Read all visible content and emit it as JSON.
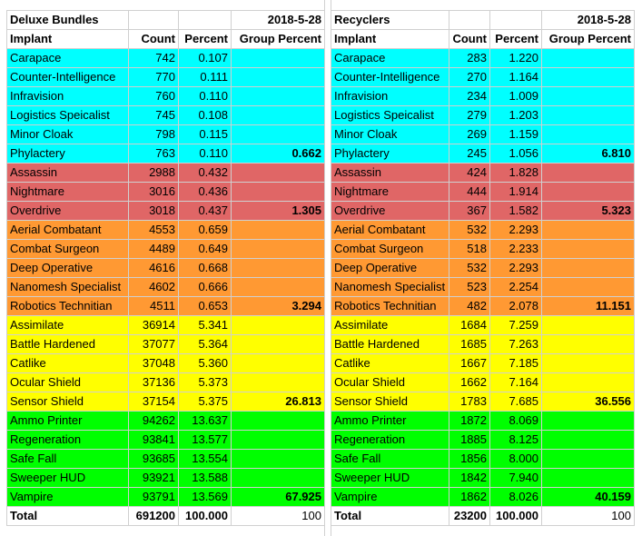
{
  "colors": {
    "cyan": "#00ffff",
    "red": "#e06666",
    "orange": "#ff9933",
    "yellow": "#ffff00",
    "green": "#00ff00",
    "white": "#ffffff"
  },
  "tables": [
    {
      "name": "deluxe-bundles",
      "title": "Deluxe Bundles",
      "date": "2018-5-28",
      "headers": [
        "Implant",
        "Count",
        "Percent",
        "Group Percent"
      ],
      "groups": [
        {
          "color": "cyan",
          "rows": [
            [
              "Carapace",
              "742",
              "0.107",
              ""
            ],
            [
              "Counter-Intelligence",
              "770",
              "0.111",
              ""
            ],
            [
              "Infravision",
              "760",
              "0.110",
              ""
            ],
            [
              "Logistics Speicalist",
              "745",
              "0.108",
              ""
            ],
            [
              "Minor Cloak",
              "798",
              "0.115",
              ""
            ],
            [
              "Phylactery",
              "763",
              "0.110",
              "0.662"
            ]
          ]
        },
        {
          "color": "red",
          "rows": [
            [
              "Assassin",
              "2988",
              "0.432",
              ""
            ],
            [
              "Nightmare",
              "3016",
              "0.436",
              ""
            ],
            [
              "Overdrive",
              "3018",
              "0.437",
              "1.305"
            ]
          ]
        },
        {
          "color": "orange",
          "rows": [
            [
              "Aerial Combatant",
              "4553",
              "0.659",
              ""
            ],
            [
              "Combat Surgeon",
              "4489",
              "0.649",
              ""
            ],
            [
              "Deep Operative",
              "4616",
              "0.668",
              ""
            ],
            [
              "Nanomesh Specialist",
              "4602",
              "0.666",
              ""
            ],
            [
              "Robotics Technitian",
              "4511",
              "0.653",
              "3.294"
            ]
          ]
        },
        {
          "color": "yellow",
          "rows": [
            [
              "Assimilate",
              "36914",
              "5.341",
              ""
            ],
            [
              "Battle Hardened",
              "37077",
              "5.364",
              ""
            ],
            [
              "Catlike",
              "37048",
              "5.360",
              ""
            ],
            [
              "Ocular Shield",
              "37136",
              "5.373",
              ""
            ],
            [
              "Sensor Shield",
              "37154",
              "5.375",
              "26.813"
            ]
          ]
        },
        {
          "color": "green",
          "rows": [
            [
              "Ammo Printer",
              "94262",
              "13.637",
              ""
            ],
            [
              "Regeneration",
              "93841",
              "13.577",
              ""
            ],
            [
              "Safe Fall",
              "93685",
              "13.554",
              ""
            ],
            [
              "Sweeper HUD",
              "93921",
              "13.588",
              ""
            ],
            [
              "Vampire",
              "93791",
              "13.569",
              "67.925"
            ]
          ]
        }
      ],
      "total": [
        "Total",
        "691200",
        "100.000",
        "100"
      ]
    },
    {
      "name": "recyclers",
      "title": "Recyclers",
      "date": "2018-5-28",
      "headers": [
        "Implant",
        "Count",
        "Percent",
        "Group Percent"
      ],
      "groups": [
        {
          "color": "cyan",
          "rows": [
            [
              "Carapace",
              "283",
              "1.220",
              ""
            ],
            [
              "Counter-Intelligence",
              "270",
              "1.164",
              ""
            ],
            [
              "Infravision",
              "234",
              "1.009",
              ""
            ],
            [
              "Logistics Speicalist",
              "279",
              "1.203",
              ""
            ],
            [
              "Minor Cloak",
              "269",
              "1.159",
              ""
            ],
            [
              "Phylactery",
              "245",
              "1.056",
              "6.810"
            ]
          ]
        },
        {
          "color": "red",
          "rows": [
            [
              "Assassin",
              "424",
              "1.828",
              ""
            ],
            [
              "Nightmare",
              "444",
              "1.914",
              ""
            ],
            [
              "Overdrive",
              "367",
              "1.582",
              "5.323"
            ]
          ]
        },
        {
          "color": "orange",
          "rows": [
            [
              "Aerial Combatant",
              "532",
              "2.293",
              ""
            ],
            [
              "Combat Surgeon",
              "518",
              "2.233",
              ""
            ],
            [
              "Deep Operative",
              "532",
              "2.293",
              ""
            ],
            [
              "Nanomesh Specialist",
              "523",
              "2.254",
              ""
            ],
            [
              "Robotics Technitian",
              "482",
              "2.078",
              "11.151"
            ]
          ]
        },
        {
          "color": "yellow",
          "rows": [
            [
              "Assimilate",
              "1684",
              "7.259",
              ""
            ],
            [
              "Battle Hardened",
              "1685",
              "7.263",
              ""
            ],
            [
              "Catlike",
              "1667",
              "7.185",
              ""
            ],
            [
              "Ocular Shield",
              "1662",
              "7.164",
              ""
            ],
            [
              "Sensor Shield",
              "1783",
              "7.685",
              "36.556"
            ]
          ]
        },
        {
          "color": "green",
          "rows": [
            [
              "Ammo Printer",
              "1872",
              "8.069",
              ""
            ],
            [
              "Regeneration",
              "1885",
              "8.125",
              ""
            ],
            [
              "Safe Fall",
              "1856",
              "8.000",
              ""
            ],
            [
              "Sweeper HUD",
              "1842",
              "7.940",
              ""
            ],
            [
              "Vampire",
              "1862",
              "8.026",
              "40.159"
            ]
          ]
        }
      ],
      "total": [
        "Total",
        "23200",
        "100.000",
        "100"
      ]
    }
  ]
}
